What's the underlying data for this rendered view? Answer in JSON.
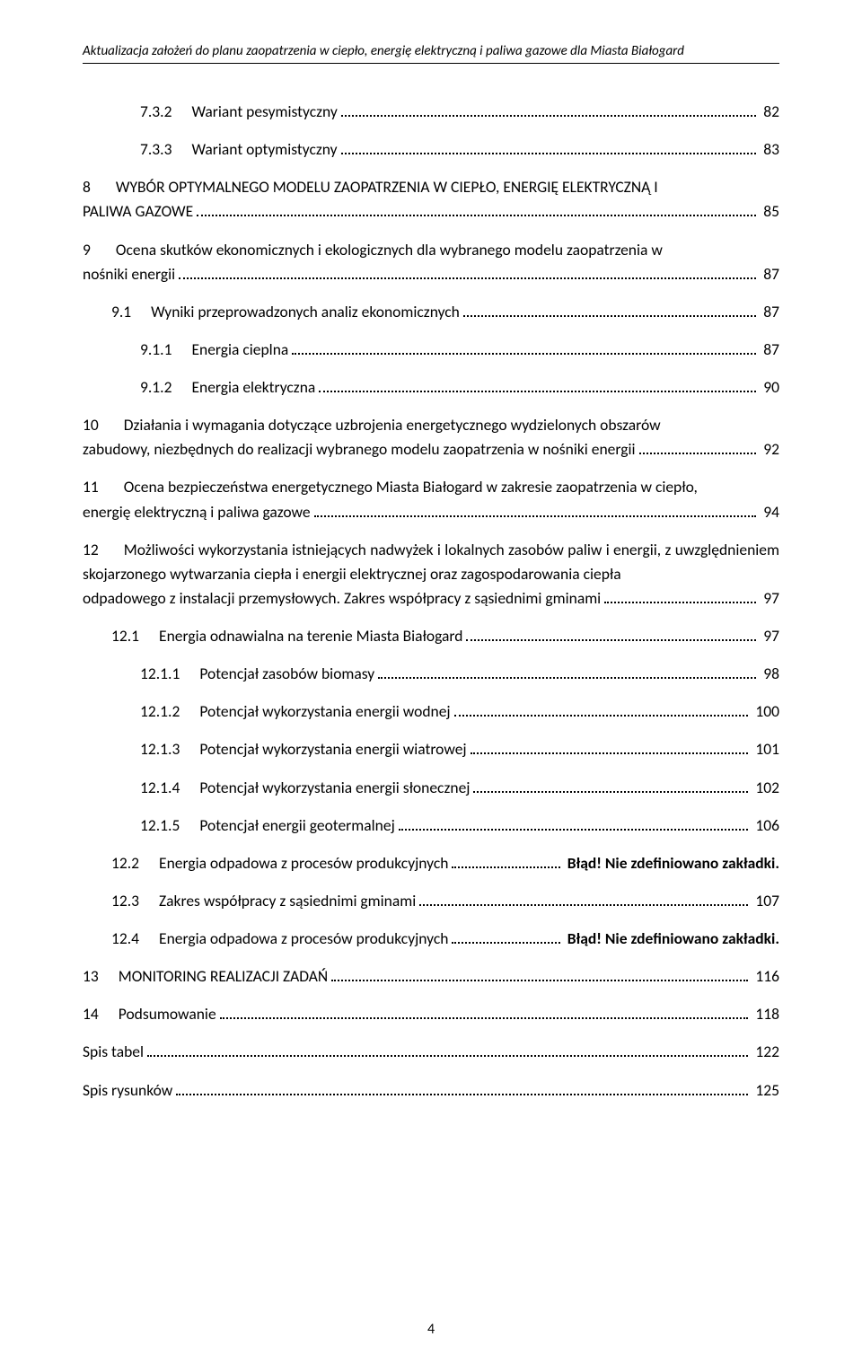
{
  "header": "Aktualizacja założeń do planu zaopatrzenia w ciepło, energię elektryczną i paliwa gazowe dla Miasta Białogard",
  "footer_page": "4",
  "toc": [
    {
      "indent": 2,
      "num": "7.3.2",
      "text": "Wariant pesymistyczny",
      "page": "82"
    },
    {
      "indent": 2,
      "num": "7.3.3",
      "text": "Wariant optymistyczny",
      "page": "83"
    },
    {
      "indent": 0,
      "multi": true,
      "num": "8",
      "body": "WYBÓR OPTYMALNEGO MODELU ZAOPATRZENIA W CIEPŁO, ENERGIĘ ELEKTRYCZNĄ I",
      "last": "PALIWA GAZOWE",
      "page": "85"
    },
    {
      "indent": 0,
      "multi": true,
      "num": "9",
      "body": "Ocena skutków ekonomicznych i ekologicznych dla wybranego modelu zaopatrzenia w",
      "last": "nośniki energii",
      "page": "87"
    },
    {
      "indent": 1,
      "num": "9.1",
      "text": "Wyniki przeprowadzonych analiz ekonomicznych",
      "page": "87"
    },
    {
      "indent": 2,
      "num": "9.1.1",
      "text": "Energia cieplna",
      "page": "87"
    },
    {
      "indent": 2,
      "num": "9.1.2",
      "text": "Energia elektryczna",
      "page": "90"
    },
    {
      "indent": 0,
      "multi": true,
      "num": "10",
      "body": "Działania i wymagania dotyczące uzbrojenia energetycznego wydzielonych obszarów",
      "last": "zabudowy, niezbędnych do realizacji wybranego modelu zaopatrzenia w nośniki energii",
      "page": "92"
    },
    {
      "indent": 0,
      "multi": true,
      "num": "11",
      "body": "Ocena bezpieczeństwa energetycznego Miasta Białogard w zakresie zaopatrzenia w ciepło,",
      "last": "energię elektryczną i paliwa gazowe",
      "page": "94"
    },
    {
      "indent": 0,
      "multi": true,
      "num": "12",
      "body": "Możliwości wykorzystania istniejących nadwyżek i lokalnych zasobów paliw i energii, z uwzględnieniem skojarzonego wytwarzania ciepła i energii elektrycznej oraz zagospodarowania ciepła",
      "last": "odpadowego z instalacji przemysłowych. Zakres współpracy z sąsiednimi gminami",
      "page": "97"
    },
    {
      "indent": 1,
      "num": "12.1",
      "text": "Energia odnawialna na terenie Miasta Białogard",
      "page": "97"
    },
    {
      "indent": 2,
      "num": "12.1.1",
      "text": "Potencjał zasobów biomasy",
      "page": "98"
    },
    {
      "indent": 2,
      "num": "12.1.2",
      "text": "Potencjał wykorzystania energii wodnej",
      "page": "100"
    },
    {
      "indent": 2,
      "num": "12.1.3",
      "text": "Potencjał wykorzystania energii wiatrowej",
      "page": "101"
    },
    {
      "indent": 2,
      "num": "12.1.4",
      "text": "Potencjał wykorzystania energii słonecznej",
      "page": "102"
    },
    {
      "indent": 2,
      "num": "12.1.5",
      "text": "Potencjał energii geotermalnej",
      "page": "106"
    },
    {
      "indent": 1,
      "num": "12.2",
      "text": "Energia odpadowa z procesów produkcyjnych",
      "page": "Błąd! Nie zdefiniowano zakładki.",
      "bold_page": true
    },
    {
      "indent": 1,
      "num": "12.3",
      "text": "Zakres współpracy z sąsiednimi gminami",
      "page": "107"
    },
    {
      "indent": 1,
      "num": "12.4",
      "text": "Energia odpadowa z procesów produkcyjnych",
      "page": "Błąd! Nie zdefiniowano zakładki.",
      "bold_page": true
    },
    {
      "indent": 0,
      "num": "13",
      "text": "MONITORING REALIZACJI ZADAŃ",
      "page": "116"
    },
    {
      "indent": 0,
      "num": "14",
      "text": "Podsumowanie",
      "page": "118"
    },
    {
      "indent": 0,
      "num": "",
      "text": "Spis tabel",
      "page": "122",
      "nonum": true
    },
    {
      "indent": 0,
      "num": "",
      "text": "Spis rysunków",
      "page": "125",
      "nonum": true
    }
  ]
}
